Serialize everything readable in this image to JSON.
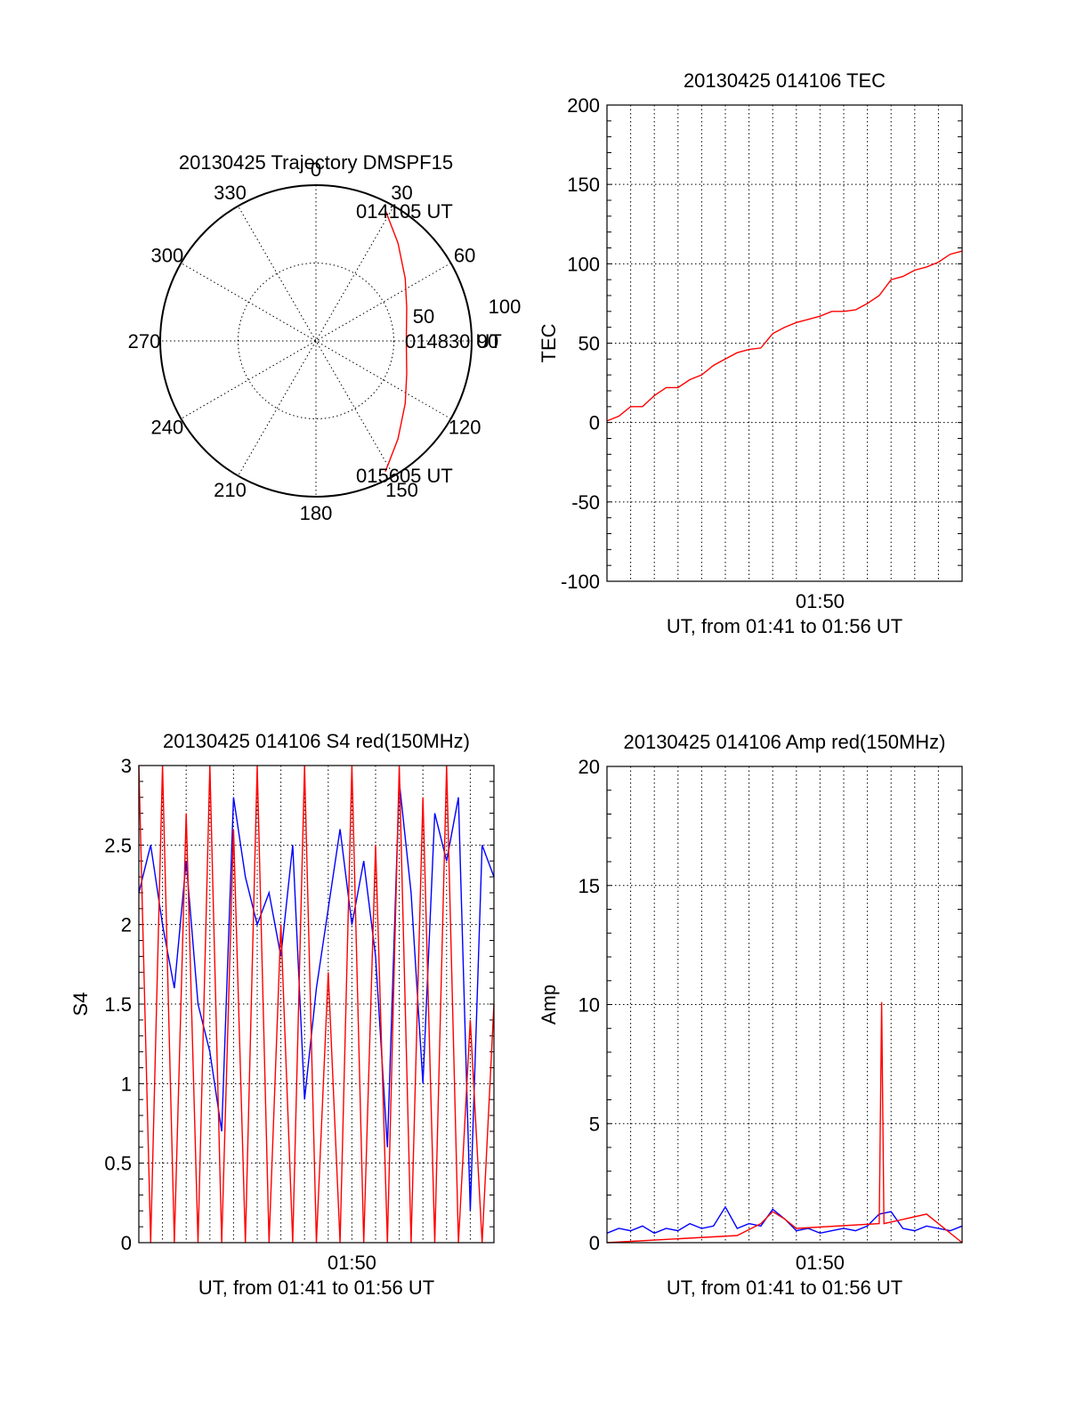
{
  "chart_data": [
    {
      "type": "polar-trajectory",
      "title": "20130425 Trajectory DMSPF15",
      "angle_labels": [
        "0",
        "30",
        "60",
        "90",
        "120",
        "150",
        "180",
        "210",
        "240",
        "270",
        "300",
        "330"
      ],
      "radial_labels": [
        "50",
        "100"
      ],
      "start_label": "014105 UT",
      "mid_label": "014830 UT",
      "end_label": "015605 UT",
      "trajectory": {
        "color": "#ff0000",
        "points": [
          [
            28,
            95
          ],
          [
            40,
            82
          ],
          [
            55,
            70
          ],
          [
            70,
            62
          ],
          [
            90,
            58
          ],
          [
            110,
            62
          ],
          [
            125,
            70
          ],
          [
            140,
            82
          ],
          [
            152,
            95
          ]
        ]
      },
      "colors": {
        "trajectory": "#ff0000"
      }
    },
    {
      "type": "line",
      "title": "20130425 014106 TEC",
      "xlabel": "UT, from 01:41 to 01:56 UT",
      "ylabel": "TEC",
      "xlim": [
        101,
        116
      ],
      "ylim": [
        -100,
        200
      ],
      "yticks": [
        "200",
        "150",
        "100",
        "50",
        "0",
        "-50",
        "-100"
      ],
      "xtick_label": "01:50",
      "series": [
        {
          "color": "#ff0000",
          "x": [
            101,
            101.5,
            102,
            102.5,
            103,
            103.5,
            104,
            104.5,
            105,
            105.5,
            106,
            106.5,
            107,
            107.5,
            108,
            108.5,
            109,
            109.5,
            110,
            110.5,
            111,
            111.5,
            112,
            112.5,
            113,
            113.5,
            114,
            114.5,
            115,
            115.5,
            116
          ],
          "y": [
            1,
            4,
            10,
            10,
            17,
            22,
            22,
            27,
            30,
            36,
            40,
            44,
            46,
            47,
            56,
            60,
            63,
            65,
            67,
            70,
            70,
            71,
            75,
            80,
            90,
            92,
            96,
            98,
            101,
            106,
            108
          ]
        }
      ],
      "colors": {
        "line": "#ff0000"
      }
    },
    {
      "type": "line",
      "title": "20130425 014106 S4 red(150MHz)",
      "xlabel": "UT, from 01:41 to 01:56 UT",
      "ylabel": "S4",
      "xlim": [
        101,
        116
      ],
      "ylim": [
        0,
        3
      ],
      "yticks": [
        "3",
        "2.5",
        "2",
        "1.5",
        "1",
        "0.5",
        "0"
      ],
      "xtick_label": "01:50",
      "series": [
        {
          "name": "blue",
          "color": "#0000ff",
          "x": [
            101,
            101.5,
            102,
            102.5,
            103,
            103.5,
            104,
            104.5,
            105,
            105.5,
            106,
            106.5,
            107,
            107.5,
            108,
            108.5,
            109,
            109.5,
            110,
            110.5,
            111,
            111.5,
            112,
            112.5,
            113,
            113.5,
            114,
            114.5,
            115,
            115.5,
            116
          ],
          "y": [
            2.2,
            2.5,
            2.0,
            1.6,
            2.4,
            1.5,
            1.2,
            0.7,
            2.8,
            2.3,
            2.0,
            2.2,
            1.8,
            2.5,
            0.9,
            1.6,
            2.1,
            2.6,
            2.0,
            2.4,
            1.8,
            0.6,
            2.9,
            2.2,
            1.0,
            2.7,
            2.4,
            2.8,
            0.2,
            2.5,
            2.3
          ]
        },
        {
          "name": "red",
          "color": "#ff0000",
          "x": [
            101,
            101.5,
            102,
            102.5,
            103,
            103.5,
            104,
            104.5,
            105,
            105.5,
            106,
            106.5,
            107,
            107.5,
            108,
            108.5,
            109,
            109.5,
            110,
            110.5,
            111,
            111.5,
            112,
            112.5,
            113,
            113.5,
            114,
            114.5,
            115,
            115.5,
            116
          ],
          "y": [
            3.0,
            0.0,
            3.0,
            0.0,
            2.7,
            0.0,
            3.0,
            0.0,
            2.6,
            0.0,
            3.0,
            0.0,
            2.0,
            0.0,
            3.0,
            0.0,
            1.7,
            0.0,
            3.0,
            0.0,
            2.5,
            0.0,
            3.0,
            0.0,
            2.8,
            0.0,
            3.0,
            0.0,
            1.4,
            0.0,
            1.5
          ]
        }
      ],
      "colors": {
        "blue": "#0000ff",
        "red": "#ff0000"
      }
    },
    {
      "type": "line",
      "title": "20130425 014106 Amp red(150MHz)",
      "xlabel": "UT, from 01:41 to 01:56 UT",
      "ylabel": "Amp",
      "xlim": [
        101,
        116
      ],
      "ylim": [
        0,
        20
      ],
      "yticks": [
        "20",
        "15",
        "10",
        "5",
        "0"
      ],
      "xtick_label": "01:50",
      "series": [
        {
          "name": "blue",
          "color": "#0000ff",
          "x": [
            101,
            101.5,
            102,
            102.5,
            103,
            103.5,
            104,
            104.5,
            105,
            105.5,
            106,
            106.5,
            107,
            107.5,
            108,
            108.5,
            109,
            109.5,
            110,
            110.5,
            111,
            111.5,
            112,
            112.5,
            113,
            113.5,
            114,
            114.5,
            115,
            115.5,
            116
          ],
          "y": [
            0.4,
            0.6,
            0.5,
            0.7,
            0.4,
            0.6,
            0.5,
            0.8,
            0.6,
            0.7,
            1.5,
            0.6,
            0.8,
            0.7,
            1.4,
            1.0,
            0.5,
            0.6,
            0.4,
            0.5,
            0.6,
            0.5,
            0.7,
            1.2,
            1.3,
            0.6,
            0.5,
            0.7,
            0.6,
            0.5,
            0.7
          ]
        },
        {
          "name": "red",
          "color": "#ff0000",
          "x": [
            101,
            106.5,
            107.5,
            108,
            108.5,
            109,
            112.5,
            112.6,
            112.7,
            114.5,
            116
          ],
          "y": [
            0.0,
            0.3,
            0.8,
            1.3,
            1.0,
            0.6,
            0.8,
            10.1,
            0.8,
            1.2,
            0.0
          ]
        }
      ],
      "colors": {
        "blue": "#0000ff",
        "red": "#ff0000"
      }
    }
  ]
}
